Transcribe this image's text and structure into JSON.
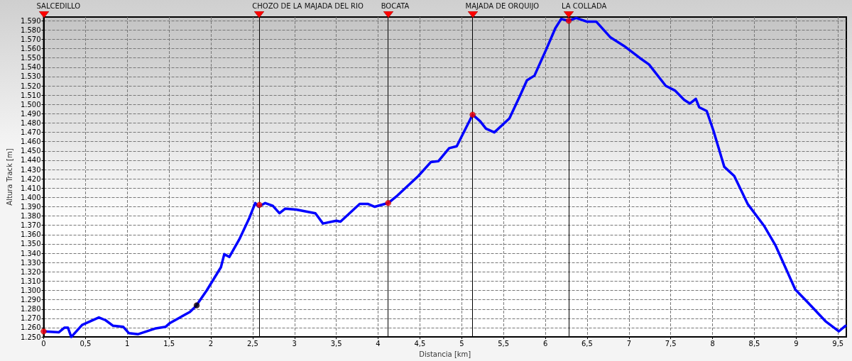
{
  "chart_data": {
    "type": "line",
    "xlabel": "Distancia [km]",
    "ylabel": "Altura Track [m]",
    "xlim": [
      0,
      9.6
    ],
    "ylim": [
      1250,
      1594
    ],
    "xticks": [
      0,
      {
        "value": 0.5,
        "label": "0,5"
      },
      1,
      {
        "value": 1.5,
        "label": "1,5"
      },
      2,
      {
        "value": 2.5,
        "label": "2,5"
      },
      3,
      {
        "value": 3.5,
        "label": "3,5"
      },
      4,
      {
        "value": 4.5,
        "label": "4,5"
      },
      5,
      {
        "value": 5.5,
        "label": "5,5"
      },
      6,
      {
        "value": 6.5,
        "label": "6,5"
      },
      7,
      {
        "value": 7.5,
        "label": "7,5"
      },
      8,
      {
        "value": 8.5,
        "label": "8,5"
      },
      9,
      {
        "value": 9.5,
        "label": "9,5"
      }
    ],
    "yticks": [
      {
        "value": 1250,
        "label": "1.250"
      },
      {
        "value": 1260,
        "label": "1.260"
      },
      {
        "value": 1270,
        "label": "1.270"
      },
      {
        "value": 1280,
        "label": "1.280"
      },
      {
        "value": 1290,
        "label": "1.290"
      },
      {
        "value": 1300,
        "label": "1.300"
      },
      {
        "value": 1310,
        "label": "1.310"
      },
      {
        "value": 1320,
        "label": "1.320"
      },
      {
        "value": 1330,
        "label": "1.330"
      },
      {
        "value": 1340,
        "label": "1.340"
      },
      {
        "value": 1350,
        "label": "1.350"
      },
      {
        "value": 1360,
        "label": "1.360"
      },
      {
        "value": 1370,
        "label": "1.370"
      },
      {
        "value": 1380,
        "label": "1.380"
      },
      {
        "value": 1390,
        "label": "1.390"
      },
      {
        "value": 1400,
        "label": "1.400"
      },
      {
        "value": 1410,
        "label": "1.410"
      },
      {
        "value": 1420,
        "label": "1.420"
      },
      {
        "value": 1430,
        "label": "1.430"
      },
      {
        "value": 1440,
        "label": "1.440"
      },
      {
        "value": 1450,
        "label": "1.450"
      },
      {
        "value": 1460,
        "label": "1.460"
      },
      {
        "value": 1470,
        "label": "1.470"
      },
      {
        "value": 1480,
        "label": "1.480"
      },
      {
        "value": 1490,
        "label": "1.490"
      },
      {
        "value": 1500,
        "label": "1.500"
      },
      {
        "value": 1510,
        "label": "1.510"
      },
      {
        "value": 1520,
        "label": "1.520"
      },
      {
        "value": 1530,
        "label": "1.530"
      },
      {
        "value": 1540,
        "label": "1.540"
      },
      {
        "value": 1550,
        "label": "1.550"
      },
      {
        "value": 1560,
        "label": "1.560"
      },
      {
        "value": 1570,
        "label": "1.570"
      },
      {
        "value": 1580,
        "label": "1.580"
      },
      {
        "value": 1590,
        "label": "1.590"
      }
    ],
    "grid": true,
    "line_style": "solid",
    "series": [
      {
        "marker": "none",
        "color": "#0000ff",
        "x": [
          0,
          0.18,
          0.25,
          0.29,
          0.33,
          0.46,
          0.66,
          0.74,
          0.83,
          0.95,
          1.02,
          1.13,
          1.33,
          1.46,
          1.51,
          1.75,
          1.82,
          1.95,
          2.12,
          2.16,
          2.22,
          2.34,
          2.46,
          2.53,
          2.57,
          2.65,
          2.74,
          2.82,
          2.89,
          3.02,
          3.25,
          3.34,
          3.5,
          3.55,
          3.78,
          3.88,
          3.96,
          4.12,
          4.23,
          4.48,
          4.63,
          4.72,
          4.85,
          4.94,
          5.13,
          5.22,
          5.29,
          5.39,
          5.57,
          5.7,
          5.78,
          5.87,
          6.01,
          6.12,
          6.19,
          6.27,
          6.37,
          6.5,
          6.61,
          6.78,
          6.94,
          7.13,
          7.24,
          7.44,
          7.55,
          7.66,
          7.73,
          7.8,
          7.84,
          7.93,
          8.01,
          8.14,
          8.26,
          8.42,
          8.62,
          8.75,
          8.99,
          9.13,
          9.35,
          9.51,
          9.59
        ],
        "values": [
          1256,
          1255,
          1260,
          1260,
          1250,
          1263,
          1271,
          1268,
          1262,
          1261,
          1254,
          1253,
          1259,
          1261,
          1265,
          1277,
          1283,
          1300,
          1325,
          1339,
          1336,
          1355,
          1378,
          1394,
          1390,
          1394,
          1391,
          1383,
          1388,
          1387,
          1383,
          1372,
          1375,
          1374,
          1393,
          1393,
          1390,
          1394,
          1402,
          1423,
          1438,
          1439,
          1453,
          1455,
          1489,
          1482,
          1474,
          1470,
          1485,
          1510,
          1526,
          1531,
          1559,
          1582,
          1592,
          1590,
          1593,
          1589,
          1589,
          1572,
          1563,
          1550,
          1543,
          1520,
          1515,
          1505,
          1501,
          1506,
          1497,
          1493,
          1472,
          1433,
          1423,
          1393,
          1369,
          1349,
          1301,
          1288,
          1267,
          1256,
          1262
        ]
      },
      {
        "type": "scatter",
        "marker": "circle",
        "color": "#ff0000",
        "x": [
          0,
          2.58,
          4.12,
          5.13,
          6.28
        ],
        "values": [
          1256,
          1392,
          1394,
          1489,
          1590
        ]
      },
      {
        "type": "scatter",
        "marker": "circle",
        "color": "#000000",
        "x": [
          1.83
        ],
        "values": [
          1284
        ]
      }
    ],
    "ref_lines": [
      {
        "axis": "x",
        "value": 0,
        "label": "SALCEDILLO",
        "color": "#000000"
      },
      {
        "axis": "x",
        "value": 2.58,
        "label": "CHOZO DE LA MAJADA DEL RIO",
        "color": "#000000"
      },
      {
        "axis": "x",
        "value": 4.12,
        "label": "BOCATA",
        "color": "#000000"
      },
      {
        "axis": "x",
        "value": 5.13,
        "label": "MAJADA DE ORQUIJO",
        "color": "#000000"
      },
      {
        "axis": "x",
        "value": 6.28,
        "label": "LA COLLADA",
        "color": "#000000"
      }
    ]
  }
}
